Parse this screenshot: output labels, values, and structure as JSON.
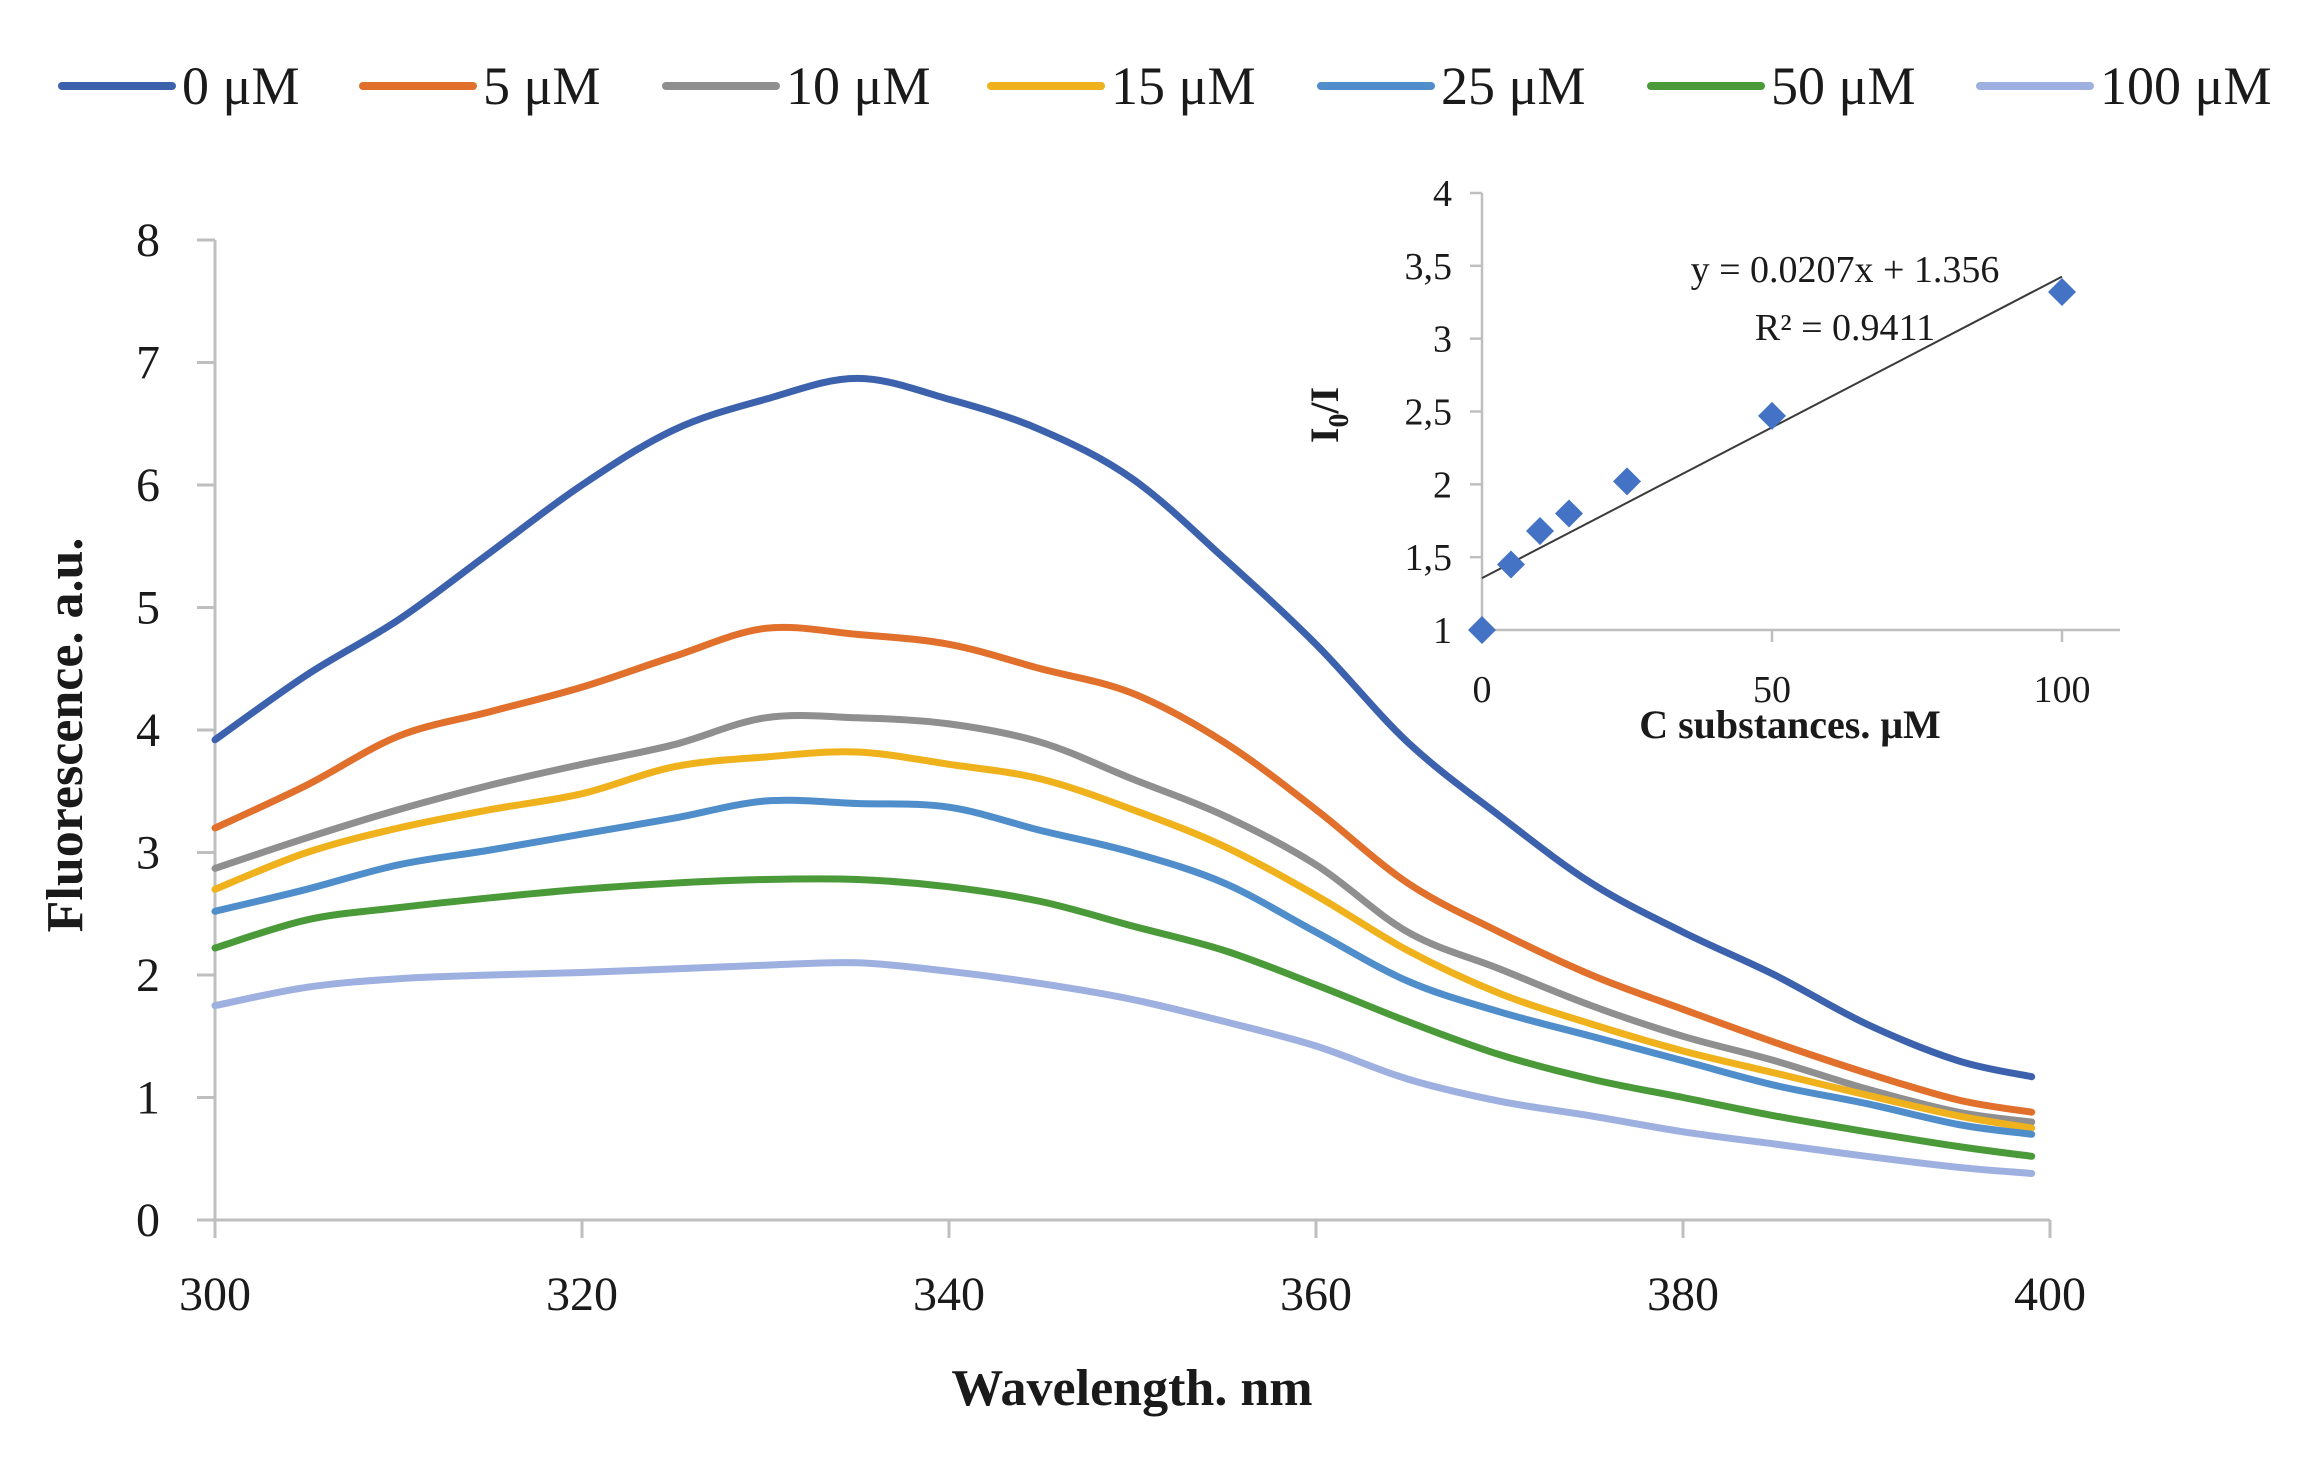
{
  "chart_data": [
    {
      "type": "line",
      "xlabel": "Wavelength. nm",
      "ylabel": "Fluorescence. a.u.",
      "xlim": [
        300,
        400
      ],
      "ylim": [
        0,
        8
      ],
      "xticks": [
        300,
        320,
        340,
        360,
        380,
        400
      ],
      "yticks": [
        0,
        1,
        2,
        3,
        4,
        5,
        6,
        7,
        8
      ],
      "legend_position": "top",
      "x": [
        300,
        305,
        310,
        315,
        320,
        325,
        330,
        335,
        340,
        345,
        350,
        355,
        360,
        365,
        370,
        375,
        380,
        385,
        390,
        395,
        399
      ],
      "series": [
        {
          "name": "0 μM",
          "color": "#3d62ad",
          "values": [
            3.92,
            4.45,
            4.9,
            5.45,
            6.0,
            6.45,
            6.7,
            6.87,
            6.7,
            6.45,
            6.05,
            5.4,
            4.7,
            3.9,
            3.3,
            2.75,
            2.35,
            2.0,
            1.6,
            1.3,
            1.17
          ]
        },
        {
          "name": "5 μM",
          "color": "#e0702b",
          "values": [
            3.2,
            3.55,
            3.95,
            4.15,
            4.35,
            4.6,
            4.83,
            4.78,
            4.7,
            4.5,
            4.3,
            3.9,
            3.35,
            2.75,
            2.35,
            2.0,
            1.72,
            1.45,
            1.2,
            0.98,
            0.88
          ]
        },
        {
          "name": "10 μM",
          "color": "#8f8f8f",
          "values": [
            2.87,
            3.12,
            3.35,
            3.55,
            3.72,
            3.88,
            4.1,
            4.1,
            4.05,
            3.9,
            3.6,
            3.3,
            2.9,
            2.35,
            2.05,
            1.75,
            1.5,
            1.3,
            1.07,
            0.88,
            0.8
          ]
        },
        {
          "name": "15 μM",
          "color": "#f0b21c",
          "values": [
            2.7,
            3.0,
            3.2,
            3.35,
            3.48,
            3.7,
            3.78,
            3.82,
            3.72,
            3.6,
            3.35,
            3.05,
            2.65,
            2.2,
            1.85,
            1.6,
            1.38,
            1.2,
            1.02,
            0.85,
            0.75
          ]
        },
        {
          "name": "25 μM",
          "color": "#4f8ecb",
          "values": [
            2.52,
            2.7,
            2.9,
            3.02,
            3.15,
            3.28,
            3.42,
            3.4,
            3.37,
            3.18,
            3.0,
            2.75,
            2.35,
            1.95,
            1.7,
            1.5,
            1.3,
            1.1,
            0.95,
            0.78,
            0.7
          ]
        },
        {
          "name": "50 μM",
          "color": "#4b9a3a",
          "values": [
            2.22,
            2.45,
            2.55,
            2.63,
            2.7,
            2.75,
            2.78,
            2.78,
            2.72,
            2.6,
            2.4,
            2.2,
            1.92,
            1.62,
            1.35,
            1.15,
            1.0,
            0.85,
            0.72,
            0.6,
            0.52
          ]
        },
        {
          "name": "100 μM",
          "color": "#9db0e0",
          "values": [
            1.75,
            1.9,
            1.97,
            2.0,
            2.02,
            2.05,
            2.08,
            2.1,
            2.03,
            1.93,
            1.8,
            1.62,
            1.42,
            1.15,
            0.97,
            0.85,
            0.72,
            0.62,
            0.52,
            0.43,
            0.38
          ]
        }
      ]
    },
    {
      "type": "scatter",
      "xlabel": "C substances. μM",
      "ylabel_base": "I",
      "ylabel_sub": "0",
      "ylabel_tail": "/I",
      "xlim": [
        0,
        110
      ],
      "ylim": [
        1,
        4
      ],
      "xticks": [
        0,
        50,
        100
      ],
      "ytick_values": [
        1,
        1.5,
        2,
        2.5,
        3,
        3.5,
        4
      ],
      "ytick_labels": [
        "1",
        "1,5",
        "2",
        "2,5",
        "3",
        "3,5",
        "4"
      ],
      "marker_color": "#4472c4",
      "x": [
        0,
        5,
        10,
        15,
        25,
        50,
        100
      ],
      "y": [
        1.0,
        1.45,
        1.68,
        1.8,
        2.02,
        2.47,
        3.32
      ],
      "trendline": {
        "slope": 0.0207,
        "intercept": 1.356,
        "x_range": [
          0,
          100
        ],
        "equation": "y = 0.0207x + 1.356",
        "r2": "R² = 0.9411"
      }
    }
  ]
}
